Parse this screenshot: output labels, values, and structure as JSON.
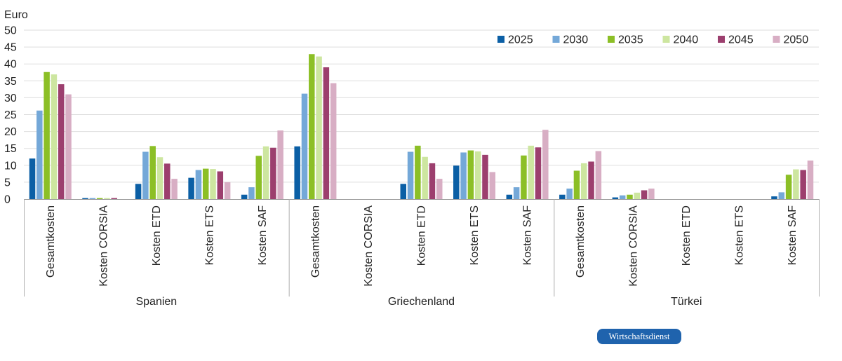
{
  "chart_data": {
    "type": "bar",
    "ylabel": "Euro",
    "ylim": [
      0,
      50
    ],
    "ytick_step": 5,
    "grid": true,
    "legend_position": "top-right",
    "groups": [
      "Spanien",
      "Griechenland",
      "Türkei"
    ],
    "categories": [
      "Gesamtkosten",
      "Kosten CORSIA",
      "Kosten ETD",
      "Kosten ETS",
      "Kosten SAF"
    ],
    "series": [
      {
        "name": "2025",
        "color": "#0b5fa5",
        "values": [
          [
            12.0,
            0.3,
            4.5,
            6.3,
            1.3
          ],
          [
            15.6,
            0.0,
            4.5,
            9.9,
            1.3
          ],
          [
            1.3,
            0.5,
            0.0,
            0.0,
            0.8
          ]
        ]
      },
      {
        "name": "2030",
        "color": "#74a8d8",
        "values": [
          [
            26.2,
            0.3,
            14.0,
            8.6,
            3.5
          ],
          [
            31.2,
            0.0,
            14.0,
            13.8,
            3.5
          ],
          [
            3.1,
            1.1,
            0.0,
            0.0,
            2.0
          ]
        ]
      },
      {
        "name": "2035",
        "color": "#8cbf26",
        "values": [
          [
            37.6,
            0.3,
            15.7,
            9.0,
            12.8
          ],
          [
            42.9,
            0.0,
            15.8,
            14.4,
            12.9
          ],
          [
            8.4,
            1.3,
            0.0,
            0.0,
            7.2
          ]
        ]
      },
      {
        "name": "2040",
        "color": "#cde6a0",
        "values": [
          [
            36.9,
            0.3,
            12.4,
            8.9,
            15.6
          ],
          [
            42.2,
            0.0,
            12.5,
            14.1,
            15.8
          ],
          [
            10.6,
            1.9,
            0.0,
            0.0,
            8.8
          ]
        ]
      },
      {
        "name": "2045",
        "color": "#9c3f6e",
        "values": [
          [
            34.0,
            0.3,
            10.5,
            8.2,
            15.2
          ],
          [
            39.0,
            0.0,
            10.6,
            13.1,
            15.3
          ],
          [
            11.1,
            2.6,
            0.0,
            0.0,
            8.6
          ]
        ]
      },
      {
        "name": "2050",
        "color": "#d8aec4",
        "values": [
          [
            31.0,
            0.0,
            6.0,
            5.0,
            20.3
          ],
          [
            34.3,
            0.0,
            6.0,
            8.0,
            20.5
          ],
          [
            14.2,
            3.1,
            0.0,
            0.0,
            11.4
          ]
        ]
      }
    ]
  },
  "badge": {
    "text": "Wirtschaftsdienst",
    "color": "#1f63ad"
  }
}
